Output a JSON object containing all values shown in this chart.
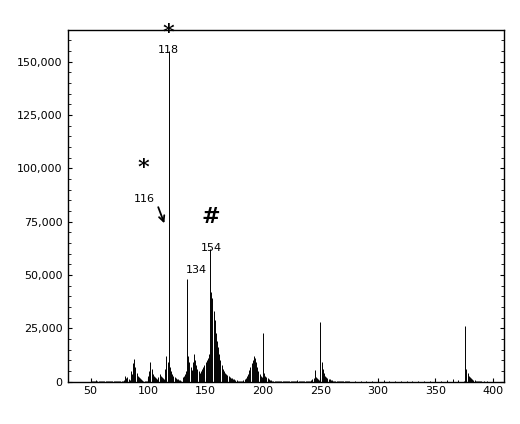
{
  "xlim": [
    30,
    410
  ],
  "ylim": [
    0,
    165000
  ],
  "yticks": [
    0,
    25000,
    50000,
    75000,
    100000,
    125000,
    150000
  ],
  "xticks": [
    50,
    100,
    150,
    200,
    250,
    300,
    350,
    400
  ],
  "background_color": "#ffffff",
  "line_color": "#000000",
  "figsize": [
    5.2,
    4.24
  ],
  "dpi": 100,
  "peaks": [
    [
      50,
      500
    ],
    [
      51,
      300
    ],
    [
      52,
      200
    ],
    [
      53,
      150
    ],
    [
      54,
      100
    ],
    [
      55,
      800
    ],
    [
      56,
      400
    ],
    [
      57,
      300
    ],
    [
      58,
      500
    ],
    [
      59,
      200
    ],
    [
      60,
      300
    ],
    [
      61,
      200
    ],
    [
      62,
      300
    ],
    [
      63,
      200
    ],
    [
      64,
      150
    ],
    [
      65,
      200
    ],
    [
      66,
      150
    ],
    [
      67,
      100
    ],
    [
      68,
      150
    ],
    [
      69,
      100
    ],
    [
      70,
      200
    ],
    [
      71,
      300
    ],
    [
      72,
      400
    ],
    [
      73,
      300
    ],
    [
      74,
      200
    ],
    [
      75,
      300
    ],
    [
      76,
      200
    ],
    [
      77,
      300
    ],
    [
      78,
      500
    ],
    [
      79,
      800
    ],
    [
      80,
      2800
    ],
    [
      81,
      1500
    ],
    [
      82,
      2000
    ],
    [
      83,
      1200
    ],
    [
      84,
      800
    ],
    [
      85,
      5000
    ],
    [
      86,
      3500
    ],
    [
      87,
      8500
    ],
    [
      88,
      10500
    ],
    [
      89,
      7000
    ],
    [
      90,
      4000
    ],
    [
      91,
      2500
    ],
    [
      92,
      2000
    ],
    [
      93,
      1500
    ],
    [
      94,
      1000
    ],
    [
      95,
      700
    ],
    [
      96,
      500
    ],
    [
      97,
      400
    ],
    [
      98,
      300
    ],
    [
      99,
      200
    ],
    [
      100,
      2500
    ],
    [
      101,
      5000
    ],
    [
      102,
      9000
    ],
    [
      103,
      6000
    ],
    [
      104,
      3500
    ],
    [
      105,
      2500
    ],
    [
      106,
      2000
    ],
    [
      107,
      1500
    ],
    [
      108,
      1200
    ],
    [
      109,
      2000
    ],
    [
      110,
      3500
    ],
    [
      111,
      2500
    ],
    [
      112,
      2000
    ],
    [
      113,
      1500
    ],
    [
      114,
      1200
    ],
    [
      115,
      6000
    ],
    [
      116,
      12000
    ],
    [
      117,
      9000
    ],
    [
      118,
      155000
    ],
    [
      119,
      7000
    ],
    [
      120,
      5000
    ],
    [
      121,
      3500
    ],
    [
      122,
      2500
    ],
    [
      123,
      2000
    ],
    [
      124,
      1500
    ],
    [
      125,
      1200
    ],
    [
      126,
      1000
    ],
    [
      127,
      800
    ],
    [
      128,
      600
    ],
    [
      129,
      500
    ],
    [
      130,
      2000
    ],
    [
      131,
      2500
    ],
    [
      132,
      3500
    ],
    [
      133,
      5000
    ],
    [
      134,
      48000
    ],
    [
      135,
      12000
    ],
    [
      136,
      9000
    ],
    [
      137,
      7000
    ],
    [
      138,
      5500
    ],
    [
      139,
      9000
    ],
    [
      140,
      13000
    ],
    [
      141,
      10000
    ],
    [
      142,
      8000
    ],
    [
      143,
      6000
    ],
    [
      144,
      5000
    ],
    [
      145,
      4000
    ],
    [
      146,
      5000
    ],
    [
      147,
      6000
    ],
    [
      148,
      7000
    ],
    [
      149,
      8000
    ],
    [
      150,
      9000
    ],
    [
      151,
      10000
    ],
    [
      152,
      11000
    ],
    [
      153,
      13000
    ],
    [
      154,
      62000
    ],
    [
      155,
      42000
    ],
    [
      156,
      39000
    ],
    [
      157,
      33000
    ],
    [
      158,
      29000
    ],
    [
      159,
      23000
    ],
    [
      160,
      19000
    ],
    [
      161,
      16000
    ],
    [
      162,
      13000
    ],
    [
      163,
      10000
    ],
    [
      164,
      8000
    ],
    [
      165,
      6000
    ],
    [
      166,
      5000
    ],
    [
      167,
      4000
    ],
    [
      168,
      3500
    ],
    [
      169,
      3000
    ],
    [
      170,
      2500
    ],
    [
      171,
      2000
    ],
    [
      172,
      1800
    ],
    [
      173,
      1500
    ],
    [
      174,
      1200
    ],
    [
      175,
      1000
    ],
    [
      176,
      800
    ],
    [
      177,
      600
    ],
    [
      178,
      500
    ],
    [
      179,
      400
    ],
    [
      180,
      300
    ],
    [
      181,
      250
    ],
    [
      182,
      200
    ],
    [
      183,
      600
    ],
    [
      184,
      1000
    ],
    [
      185,
      1500
    ],
    [
      186,
      2500
    ],
    [
      187,
      3500
    ],
    [
      188,
      5500
    ],
    [
      189,
      7000
    ],
    [
      190,
      8500
    ],
    [
      191,
      10000
    ],
    [
      192,
      12000
    ],
    [
      193,
      11000
    ],
    [
      194,
      9000
    ],
    [
      195,
      7000
    ],
    [
      196,
      5000
    ],
    [
      197,
      3500
    ],
    [
      198,
      2500
    ],
    [
      199,
      2000
    ],
    [
      200,
      23000
    ],
    [
      201,
      4000
    ],
    [
      202,
      2500
    ],
    [
      203,
      2000
    ],
    [
      204,
      1500
    ],
    [
      205,
      1000
    ],
    [
      206,
      800
    ],
    [
      207,
      600
    ],
    [
      208,
      500
    ],
    [
      209,
      400
    ],
    [
      210,
      300
    ],
    [
      211,
      250
    ],
    [
      212,
      200
    ],
    [
      213,
      200
    ],
    [
      214,
      150
    ],
    [
      215,
      200
    ],
    [
      216,
      150
    ],
    [
      217,
      200
    ],
    [
      218,
      250
    ],
    [
      219,
      300
    ],
    [
      220,
      400
    ],
    [
      221,
      300
    ],
    [
      222,
      250
    ],
    [
      223,
      200
    ],
    [
      224,
      150
    ],
    [
      225,
      200
    ],
    [
      226,
      150
    ],
    [
      227,
      200
    ],
    [
      228,
      300
    ],
    [
      229,
      400
    ],
    [
      230,
      600
    ],
    [
      231,
      400
    ],
    [
      232,
      300
    ],
    [
      233,
      250
    ],
    [
      234,
      200
    ],
    [
      235,
      300
    ],
    [
      236,
      200
    ],
    [
      237,
      200
    ],
    [
      238,
      150
    ],
    [
      239,
      200
    ],
    [
      240,
      300
    ],
    [
      241,
      400
    ],
    [
      242,
      600
    ],
    [
      243,
      1000
    ],
    [
      244,
      1500
    ],
    [
      245,
      5500
    ],
    [
      246,
      2000
    ],
    [
      247,
      1500
    ],
    [
      248,
      1000
    ],
    [
      249,
      800
    ],
    [
      250,
      28000
    ],
    [
      251,
      9000
    ],
    [
      252,
      6000
    ],
    [
      253,
      4000
    ],
    [
      254,
      2500
    ],
    [
      255,
      2000
    ],
    [
      256,
      1500
    ],
    [
      257,
      1200
    ],
    [
      258,
      1000
    ],
    [
      259,
      800
    ],
    [
      260,
      600
    ],
    [
      261,
      500
    ],
    [
      262,
      400
    ],
    [
      263,
      300
    ],
    [
      264,
      250
    ],
    [
      265,
      500
    ],
    [
      266,
      400
    ],
    [
      267,
      300
    ],
    [
      268,
      250
    ],
    [
      269,
      200
    ],
    [
      270,
      300
    ],
    [
      271,
      250
    ],
    [
      272,
      200
    ],
    [
      273,
      200
    ],
    [
      274,
      150
    ],
    [
      275,
      200
    ],
    [
      280,
      200
    ],
    [
      285,
      200
    ],
    [
      290,
      300
    ],
    [
      295,
      500
    ],
    [
      300,
      1000
    ],
    [
      305,
      700
    ],
    [
      310,
      500
    ],
    [
      315,
      400
    ],
    [
      320,
      300
    ],
    [
      325,
      250
    ],
    [
      330,
      200
    ],
    [
      335,
      200
    ],
    [
      340,
      150
    ],
    [
      345,
      200
    ],
    [
      350,
      300
    ],
    [
      355,
      500
    ],
    [
      360,
      700
    ],
    [
      365,
      1000
    ],
    [
      370,
      600
    ],
    [
      375,
      500
    ],
    [
      376,
      26000
    ],
    [
      377,
      6000
    ],
    [
      378,
      4000
    ],
    [
      379,
      2500
    ],
    [
      380,
      2000
    ],
    [
      381,
      1500
    ],
    [
      382,
      1000
    ],
    [
      383,
      800
    ],
    [
      384,
      600
    ],
    [
      385,
      500
    ],
    [
      386,
      400
    ],
    [
      387,
      300
    ],
    [
      388,
      250
    ],
    [
      389,
      200
    ],
    [
      390,
      300
    ],
    [
      392,
      200
    ],
    [
      395,
      200
    ],
    [
      400,
      300
    ]
  ]
}
